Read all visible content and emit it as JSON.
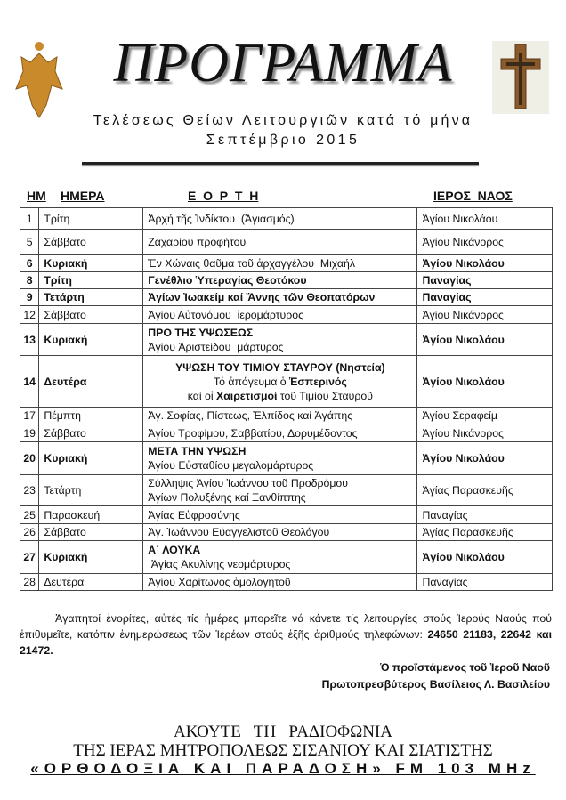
{
  "header": {
    "title": "ΠΡΟΓΡΑΜΜΑ",
    "subtitle": "Τελέσεως Θείων Λειτουργιῶν κατά τό μήνα",
    "month": "Σεπτέμβριο  2015"
  },
  "columns": {
    "num": "ΗΜ",
    "day": "ΗΜΕΡΑ",
    "feast": "Ε  Ο  Ρ  Τ  Η",
    "church": "ΙΕΡΟΣ  ΝΑΟΣ"
  },
  "rows": [
    {
      "num": "1",
      "day": "Τρίτη",
      "feast": [
        [
          {
            "t": "Ἀρχή τῆς Ἰνδίκτου  (Ἁγιασμός)"
          }
        ]
      ],
      "church": "Ἁγίου Νικολάου",
      "bold": false
    },
    {
      "num": "5",
      "day": "Σάββατο",
      "feast": [
        [
          {
            "t": "Ζαχαρίου προφήτου"
          }
        ]
      ],
      "church": "Ἁγίου Νικάνορος",
      "bold": false
    },
    {
      "num": "6",
      "day": "Κυριακή",
      "feast": [
        [
          {
            "t": "Ἐν Χώναις θαῦμα τοῦ ἀρχαγγέλου  Μιχαήλ"
          }
        ]
      ],
      "church": "Ἁγίου Νικολάου",
      "bold": true
    },
    {
      "num": "8",
      "day": "Τρίτη",
      "feast": [
        [
          {
            "t": "Γενέθλιο Ὑπεραγίας Θεοτόκου",
            "b": true
          }
        ]
      ],
      "church": "Παναγίας",
      "bold": true
    },
    {
      "num": "9",
      "day": "Τετάρτη",
      "feast": [
        [
          {
            "t": "Ἁγίων Ἰωακείμ καί Ἄννης τῶν Θεοπατόρων",
            "b": true
          }
        ]
      ],
      "church": "Παναγίας",
      "bold": true
    },
    {
      "num": "12",
      "day": "Σάββατο",
      "feast": [
        [
          {
            "t": "Ἁγίου Αὐτονόμου  ἱερομάρτυρος"
          }
        ]
      ],
      "church": "Ἁγίου Νικάνορος",
      "bold": false
    },
    {
      "num": "13",
      "day": "Κυριακή",
      "feast": [
        [
          {
            "t": "ΠΡΟ ΤΗΣ ΥΨΩΣΕΩΣ",
            "b": true
          }
        ],
        [
          {
            "t": "Ἁγίου Ἀριστείδου  μάρτυρος"
          }
        ]
      ],
      "church": "Ἁγίου Νικολάου",
      "bold": true
    },
    {
      "num": "14",
      "day": "Δευτέρα",
      "center": true,
      "feast": [
        [
          {
            "t": "ΥΨΩΣΗ ΤΟΥ ΤΙΜΙΟΥ ΣΤΑΥΡΟΥ (Νηστεία)",
            "b": true
          }
        ],
        [
          {
            "t": "Τό ἀπόγευμα ὁ "
          },
          {
            "t": "Ἑσπερινός",
            "b": true
          }
        ],
        [
          {
            "t": "καί οἱ "
          },
          {
            "t": "Χαιρετισμοί",
            "b": true
          },
          {
            "t": " τοῦ Τιμίου Σταυροῦ"
          }
        ]
      ],
      "church": "Ἁγίου Νικολάου",
      "bold": true
    },
    {
      "num": "17",
      "day": "Πέμπτη",
      "feast": [
        [
          {
            "t": "Ἁγ. Σοφίας, Πίστεως, Ἐλπίδος καί Ἀγάπης"
          }
        ]
      ],
      "church": "Ἁγίου Σεραφείμ",
      "bold": false
    },
    {
      "num": "19",
      "day": "Σάββατο",
      "feast": [
        [
          {
            "t": "Ἁγίου Τροφίμου, Σαββατίου, Δορυμέδοντος"
          }
        ]
      ],
      "church": "Ἁγίου Νικάνορος",
      "bold": false
    },
    {
      "num": "20",
      "day": "Κυριακή",
      "feast": [
        [
          {
            "t": "ΜΕΤΑ ΤΗΝ ΥΨΩΣΗ",
            "b": true
          }
        ],
        [
          {
            "t": "Ἁγίου Εὐσταθίου μεγαλομάρτυρος"
          }
        ]
      ],
      "church": "Ἁγίου Νικολάου",
      "bold": true
    },
    {
      "num": "23",
      "day": "Τετάρτη",
      "feast": [
        [
          {
            "t": "Σύλληψις Ἁγίου Ἰωάννου τοῦ Προδρόμου"
          }
        ],
        [
          {
            "t": "Ἁγίων Πολυξένης καί Ξανθίππης"
          }
        ]
      ],
      "church": "Ἁγίας Παρασκευῆς",
      "bold": false
    },
    {
      "num": "25",
      "day": "Παρασκευή",
      "feast": [
        [
          {
            "t": "Ἁγίας Εὐφροσύνης"
          }
        ]
      ],
      "church": "Παναγίας",
      "bold": false
    },
    {
      "num": "26",
      "day": "Σάββατο",
      "feast": [
        [
          {
            "t": "Ἁγ. Ἰωάννου Εὐαγγελιστοῦ Θεολόγου"
          }
        ]
      ],
      "church": "Ἁγίας Παρασκευῆς",
      "bold": false
    },
    {
      "num": "27",
      "day": "Κυριακή",
      "feast": [
        [
          {
            "t": "Α΄ ΛΟΥΚΑ",
            "b": true
          }
        ],
        [
          {
            "t": " Ἁγίας Ἀκυλίνης νεομάρτυρος"
          }
        ]
      ],
      "church": "Ἁγίου Νικολάου",
      "bold": true
    },
    {
      "num": "28",
      "day": "Δευτέρα",
      "feast": [
        [
          {
            "t": "Ἁγίου Χαρίτωνος ὁμολογητοῦ"
          }
        ]
      ],
      "church": "Παναγίας",
      "bold": false
    }
  ],
  "notice": {
    "text": "Ἀγαπητοί ἐνορίτες, αὐτές τίς ἡμέρες μπορεῖτε νά κάνετε τίς λειτουργίες στούς Ἱερούς Ναούς πού ἐπιθυμεῖτε, κατόπιν ἐνημερώσεως τῶν Ἱερέων στούς ἑξῆς ἀριθμούς τηλεφώνων: ",
    "phones": "24650 21183, 22642 και 21472."
  },
  "signature": {
    "line1": "Ὁ προϊστάμενος τοῦ Ἱεροῦ Ναοῦ",
    "line2": "Πρωτοπρεσβύτερος Βασίλειος Λ. Βασιλείου"
  },
  "footer": {
    "line1": "ΑΚΟΥΤΕ   ΤΗ   ΡΑΔΙΟΦΩΝΙΑ",
    "line2": "ΤΗΣ ΙΕΡΑΣ ΜΗΤΡΟΠΟΛΕΩΣ ΣΙΣΑΝΙΟΥ ΚΑΙ ΣΙΑΤΙΣΤΗΣ",
    "line3": "«ΟΡΘΟΔΟΞΙΑ ΚΑΙ ΠΑΡΑΔΟΣΗ»  FM 103 MHz"
  },
  "colors": {
    "eagle": "#c98a2c",
    "cross": "#8a5a2b",
    "text": "#111111"
  }
}
